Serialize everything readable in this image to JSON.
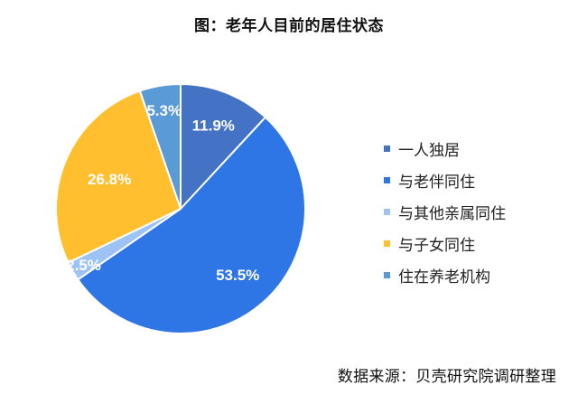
{
  "chart_data": {
    "type": "pie",
    "title": "图：老年人目前的居住状态",
    "categories": [
      "一人独居",
      "与老伴同住",
      "与其他亲属同住",
      "与子女同住",
      "住在养老机构"
    ],
    "values": [
      11.9,
      53.5,
      2.5,
      26.8,
      5.3
    ],
    "labels": [
      "11.9%",
      "53.5%",
      "2.5%",
      "26.8%",
      "5.3%"
    ],
    "colors": [
      "#4472C4",
      "#2E75E6",
      "#9DC3F5",
      "#FFBF2E",
      "#5B9BD5"
    ],
    "legend_position": "right",
    "start": "12 o'clock, clockwise"
  },
  "source": "数据来源：贝壳研究院调研整理"
}
